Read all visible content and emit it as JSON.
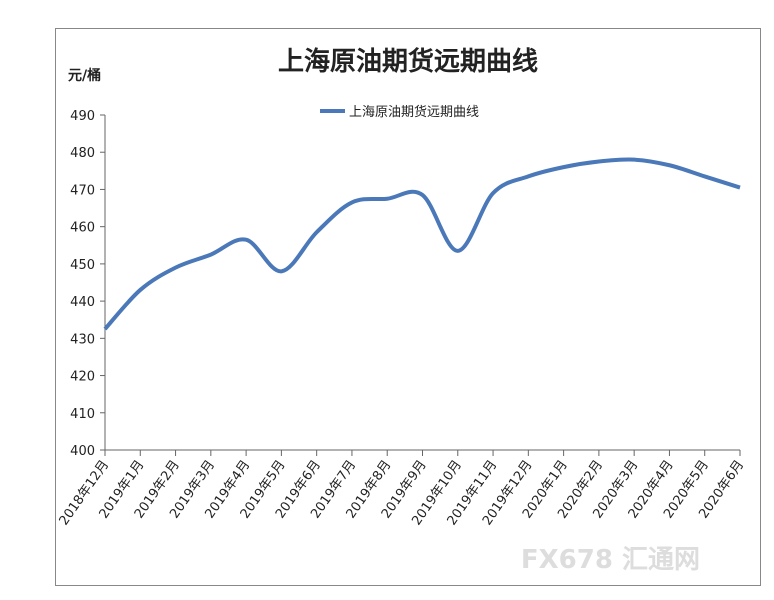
{
  "chart_data": {
    "type": "line",
    "title": "上海原油期货远期曲线",
    "y_label": "元/桶",
    "categories": [
      "2018年12月",
      "2019年1月",
      "2019年2月",
      "2019年3月",
      "2019年4月",
      "2019年5月",
      "2019年6月",
      "2019年7月",
      "2019年8月",
      "2019年9月",
      "2019年10月",
      "2019年11月",
      "2019年12月",
      "2020年1月",
      "2020年2月",
      "2020年3月",
      "2020年4月",
      "2020年5月",
      "2020年6月"
    ],
    "series": [
      {
        "name": "上海原油期货远期曲线",
        "color": "#4a78b8",
        "values": [
          432.5,
          443,
          449,
          452.5,
          456.5,
          448,
          458.5,
          466.5,
          467.5,
          468.5,
          453.5,
          469,
          473.5,
          476,
          477.5,
          478,
          476.5,
          473.5,
          470.5
        ]
      }
    ],
    "ylim": [
      400,
      490
    ],
    "yticks": [
      400,
      410,
      420,
      430,
      440,
      450,
      460,
      470,
      480,
      490
    ],
    "legend": "top",
    "watermark": "FX678 汇通网"
  }
}
